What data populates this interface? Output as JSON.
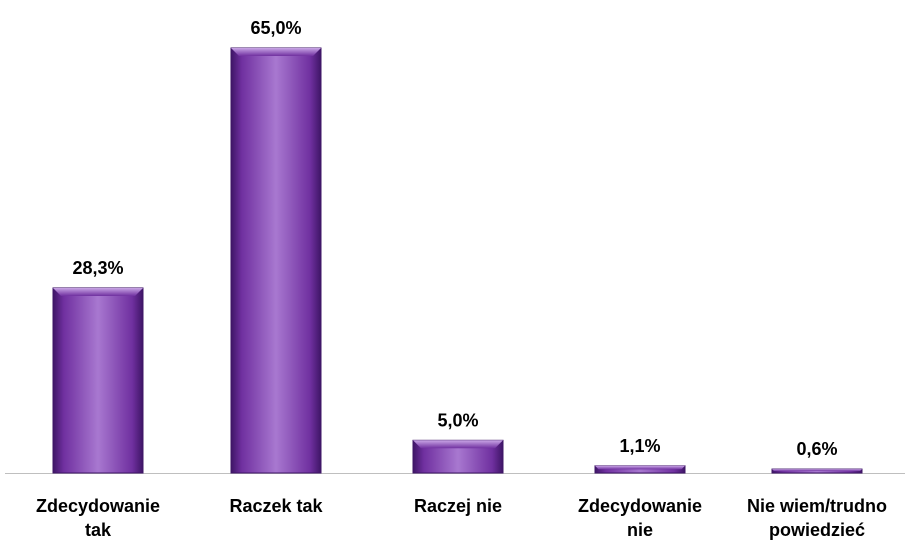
{
  "chart_data": {
    "type": "bar",
    "categories": [
      [
        "Zdecydowanie",
        "tak"
      ],
      [
        "Raczek tak"
      ],
      [
        "Raczej nie"
      ],
      [
        "Zdecydowanie",
        "nie"
      ],
      [
        "Nie wiem/trudno",
        "powiedzieć"
      ]
    ],
    "values": [
      28.3,
      65.0,
      5.0,
      1.1,
      0.6
    ],
    "value_labels": [
      "28,3%",
      "65,0%",
      "5,0%",
      "1,1%",
      "0,6%"
    ],
    "title": "",
    "xlabel": "",
    "ylabel": "",
    "ylim": [
      0,
      65.0
    ],
    "grid": false,
    "legend": "none",
    "colors": {
      "bar_main": "#7030A0",
      "bar_light": "#A878D0",
      "bar_dark": "#3E1566",
      "axis": "#BFBFBF",
      "text": "#000000"
    }
  }
}
